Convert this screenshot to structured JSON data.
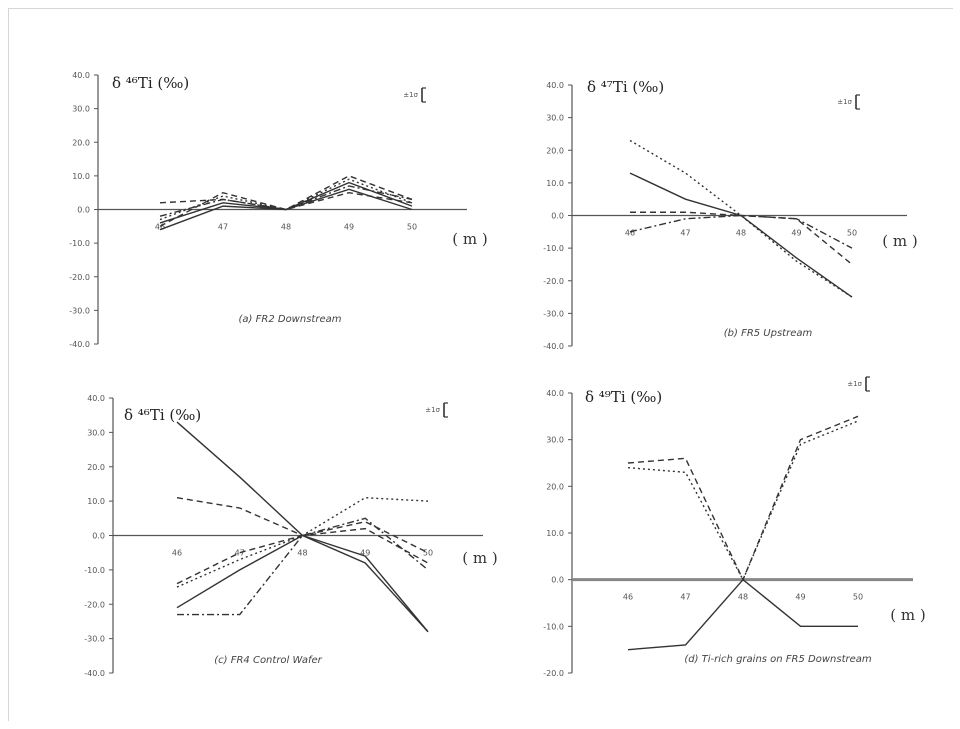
{
  "chart_data": [
    {
      "type": "line",
      "ylabel": "δ ⁴⁶Ti (‰)",
      "xunit": "( m )",
      "caption": "(a) FR2 Downstream",
      "error_label": "±1σ",
      "categories": [
        "46",
        "47",
        "48",
        "49",
        "50"
      ],
      "yticks": [
        "40.0",
        "30.0",
        "20.0",
        "10.0",
        "0.0",
        "-10.0",
        "-20.0",
        "-30.0",
        "-40.0"
      ],
      "ylim": [
        -40,
        40
      ],
      "series": [
        {
          "style": "dash",
          "values": [
            -5,
            5,
            0,
            10,
            3
          ]
        },
        {
          "style": "solid",
          "values": [
            -4,
            2,
            0,
            8,
            1
          ]
        },
        {
          "style": "dot",
          "values": [
            -3,
            4,
            0,
            9,
            2
          ]
        },
        {
          "style": "dashdot",
          "values": [
            -2,
            3,
            0,
            7,
            3
          ]
        },
        {
          "style": "solid",
          "values": [
            -6,
            1,
            0,
            6,
            0
          ]
        },
        {
          "style": "dash",
          "values": [
            2,
            3,
            0,
            5,
            2
          ]
        }
      ]
    },
    {
      "type": "line",
      "ylabel": "δ ⁴⁷Ti (‰)",
      "xunit": "( m )",
      "caption": "(b) FR5 Upstream",
      "error_label": "±1σ",
      "categories": [
        "46",
        "47",
        "48",
        "49",
        "50"
      ],
      "yticks": [
        "40.0",
        "30.0",
        "20.0",
        "10.0",
        "0.0",
        "-10.0",
        "-20.0",
        "-30.0",
        "-40.0"
      ],
      "ylim": [
        -40,
        40
      ],
      "series": [
        {
          "style": "dot",
          "values": [
            23,
            13,
            0,
            -14,
            -25
          ]
        },
        {
          "style": "solid",
          "values": [
            13,
            5,
            0,
            -13,
            -25
          ]
        },
        {
          "style": "dash",
          "values": [
            1,
            1,
            0,
            -1,
            -15
          ]
        },
        {
          "style": "dashdot",
          "values": [
            -5,
            -1,
            0,
            -1,
            -10
          ]
        }
      ]
    },
    {
      "type": "line",
      "ylabel": "δ ⁴⁶Ti (‰)",
      "xunit": "( m )",
      "caption": "(c) FR4 Control Wafer",
      "error_label": "±1σ",
      "categories": [
        "46",
        "47",
        "48",
        "49",
        "50"
      ],
      "yticks": [
        "40.0",
        "30.0",
        "20.0",
        "10.0",
        "0.0",
        "-10.0",
        "-20.0",
        "-30.0",
        "-40.0"
      ],
      "ylim": [
        -40,
        40
      ],
      "series": [
        {
          "style": "solid",
          "values": [
            33,
            17,
            0,
            -8,
            -28
          ]
        },
        {
          "style": "dash",
          "values": [
            11,
            8,
            0,
            2,
            -8
          ]
        },
        {
          "style": "dot",
          "values": [
            -15,
            -7,
            0,
            11,
            10
          ]
        },
        {
          "style": "dashdot",
          "values": [
            -23,
            -23,
            0,
            5,
            -10
          ]
        },
        {
          "style": "solid",
          "values": [
            -21,
            -10,
            0,
            -6,
            -28
          ]
        },
        {
          "style": "dash",
          "values": [
            -14,
            -5,
            0,
            4,
            -5
          ]
        }
      ]
    },
    {
      "type": "line",
      "ylabel": "δ ⁴⁹Ti (‰)",
      "xunit": "( m )",
      "caption": "(d) Ti-rich grains on FR5 Downstream",
      "error_label": "±1σ",
      "categories": [
        "46",
        "47",
        "48",
        "49",
        "50"
      ],
      "yticks": [
        "40.0",
        "30.0",
        "20.0",
        "10.0",
        "0.0",
        "-10.0",
        "-20.0"
      ],
      "ylim": [
        -20,
        40
      ],
      "series": [
        {
          "style": "dash",
          "values": [
            25,
            26,
            0,
            30,
            35
          ]
        },
        {
          "style": "dot",
          "values": [
            24,
            23,
            0,
            29,
            34
          ]
        },
        {
          "style": "solid",
          "values": [
            -15,
            -14,
            0,
            -10,
            -10
          ]
        }
      ]
    }
  ]
}
